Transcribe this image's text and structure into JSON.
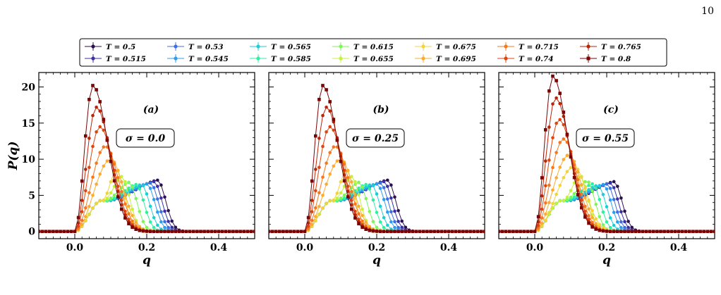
{
  "page_number": "10",
  "legend": [
    {
      "label": "T = 0.5",
      "color": "#2d0f4f",
      "marker": "circle"
    },
    {
      "label": "T = 0.515",
      "color": "#3a2fa6",
      "marker": "circle"
    },
    {
      "label": "T = 0.53",
      "color": "#3d6fe0",
      "marker": "circle"
    },
    {
      "label": "T = 0.545",
      "color": "#2c9ef0",
      "marker": "circle"
    },
    {
      "label": "T = 0.565",
      "color": "#1bcfd4",
      "marker": "circle"
    },
    {
      "label": "T = 0.585",
      "color": "#2fefa0",
      "marker": "circle"
    },
    {
      "label": "T = 0.615",
      "color": "#7ef55a",
      "marker": "circle"
    },
    {
      "label": "T = 0.655",
      "color": "#c4f13a",
      "marker": "circle"
    },
    {
      "label": "T = 0.675",
      "color": "#f1d33a",
      "marker": "circle"
    },
    {
      "label": "T = 0.695",
      "color": "#fbab30",
      "marker": "circle"
    },
    {
      "label": "T = 0.715",
      "color": "#f5781e",
      "marker": "circle"
    },
    {
      "label": "T = 0.74",
      "color": "#dc4710",
      "marker": "circle"
    },
    {
      "label": "T = 0.765",
      "color": "#b82406",
      "marker": "circle"
    },
    {
      "label": "T = 0.8",
      "color": "#7a0403",
      "marker": "square"
    }
  ],
  "chart_data": [
    {
      "type": "line",
      "panel_label": "(a)",
      "annotation": "σ = 0.0",
      "xlabel": "q",
      "ylabel": "P(q)",
      "xlim": [
        -0.1,
        0.5
      ],
      "ylim": [
        -1,
        22
      ],
      "xticks": [
        "0.0",
        "0.2",
        "0.4"
      ],
      "yticks": [
        "0",
        "5",
        "10",
        "15",
        "20"
      ],
      "series_peaks": [
        {
          "name": "T = 0.5",
          "q_peak": 0.23,
          "p_peak": 7.1
        },
        {
          "name": "T = 0.515",
          "q_peak": 0.22,
          "p_peak": 6.9
        },
        {
          "name": "T = 0.53",
          "q_peak": 0.21,
          "p_peak": 6.7
        },
        {
          "name": "T = 0.545",
          "q_peak": 0.2,
          "p_peak": 6.6
        },
        {
          "name": "T = 0.565",
          "q_peak": 0.185,
          "p_peak": 6.5
        },
        {
          "name": "T = 0.585",
          "q_peak": 0.17,
          "p_peak": 6.5
        },
        {
          "name": "T = 0.615",
          "q_peak": 0.15,
          "p_peak": 6.8
        },
        {
          "name": "T = 0.655",
          "q_peak": 0.13,
          "p_peak": 7.6
        },
        {
          "name": "T = 0.675",
          "q_peak": 0.115,
          "p_peak": 8.6
        },
        {
          "name": "T = 0.695",
          "q_peak": 0.1,
          "p_peak": 10.0
        },
        {
          "name": "T = 0.715",
          "q_peak": 0.085,
          "p_peak": 11.8
        },
        {
          "name": "T = 0.74",
          "q_peak": 0.07,
          "p_peak": 14.5
        },
        {
          "name": "T = 0.765",
          "q_peak": 0.06,
          "p_peak": 17.2
        },
        {
          "name": "T = 0.8",
          "q_peak": 0.05,
          "p_peak": 20.2
        }
      ]
    },
    {
      "type": "line",
      "panel_label": "(b)",
      "annotation": "σ = 0.25",
      "xlabel": "q",
      "ylabel": "",
      "xlim": [
        -0.1,
        0.5
      ],
      "ylim": [
        -1,
        22
      ],
      "xticks": [
        "0.0",
        "0.2",
        "0.4"
      ],
      "yticks": [],
      "series_peaks": [
        {
          "name": "T = 0.5",
          "q_peak": 0.23,
          "p_peak": 7.1
        },
        {
          "name": "T = 0.515",
          "q_peak": 0.22,
          "p_peak": 6.9
        },
        {
          "name": "T = 0.53",
          "q_peak": 0.21,
          "p_peak": 6.7
        },
        {
          "name": "T = 0.545",
          "q_peak": 0.2,
          "p_peak": 6.6
        },
        {
          "name": "T = 0.565",
          "q_peak": 0.185,
          "p_peak": 6.5
        },
        {
          "name": "T = 0.585",
          "q_peak": 0.17,
          "p_peak": 6.5
        },
        {
          "name": "T = 0.615",
          "q_peak": 0.15,
          "p_peak": 6.8
        },
        {
          "name": "T = 0.655",
          "q_peak": 0.13,
          "p_peak": 7.6
        },
        {
          "name": "T = 0.675",
          "q_peak": 0.115,
          "p_peak": 8.6
        },
        {
          "name": "T = 0.695",
          "q_peak": 0.1,
          "p_peak": 10.0
        },
        {
          "name": "T = 0.715",
          "q_peak": 0.085,
          "p_peak": 11.8
        },
        {
          "name": "T = 0.74",
          "q_peak": 0.07,
          "p_peak": 14.5
        },
        {
          "name": "T = 0.765",
          "q_peak": 0.06,
          "p_peak": 17.2
        },
        {
          "name": "T = 0.8",
          "q_peak": 0.05,
          "p_peak": 20.2
        }
      ]
    },
    {
      "type": "line",
      "panel_label": "(c)",
      "annotation": "σ = 0.55",
      "xlabel": "q",
      "ylabel": "",
      "xlim": [
        -0.1,
        0.5
      ],
      "ylim": [
        -1,
        22
      ],
      "xticks": [
        "0.0",
        "0.2",
        "0.4"
      ],
      "yticks": [],
      "series_peaks": [
        {
          "name": "T = 0.5",
          "q_peak": 0.22,
          "p_peak": 6.9
        },
        {
          "name": "T = 0.515",
          "q_peak": 0.21,
          "p_peak": 6.7
        },
        {
          "name": "T = 0.53",
          "q_peak": 0.2,
          "p_peak": 6.6
        },
        {
          "name": "T = 0.545",
          "q_peak": 0.19,
          "p_peak": 6.5
        },
        {
          "name": "T = 0.565",
          "q_peak": 0.175,
          "p_peak": 6.4
        },
        {
          "name": "T = 0.585",
          "q_peak": 0.16,
          "p_peak": 6.6
        },
        {
          "name": "T = 0.615",
          "q_peak": 0.145,
          "p_peak": 7.0
        },
        {
          "name": "T = 0.655",
          "q_peak": 0.125,
          "p_peak": 7.8
        },
        {
          "name": "T = 0.675",
          "q_peak": 0.11,
          "p_peak": 9.0
        },
        {
          "name": "T = 0.695",
          "q_peak": 0.095,
          "p_peak": 10.6
        },
        {
          "name": "T = 0.715",
          "q_peak": 0.08,
          "p_peak": 12.8
        },
        {
          "name": "T = 0.74",
          "q_peak": 0.068,
          "p_peak": 15.5
        },
        {
          "name": "T = 0.765",
          "q_peak": 0.058,
          "p_peak": 18.5
        },
        {
          "name": "T = 0.8",
          "q_peak": 0.05,
          "p_peak": 21.5
        }
      ]
    }
  ]
}
